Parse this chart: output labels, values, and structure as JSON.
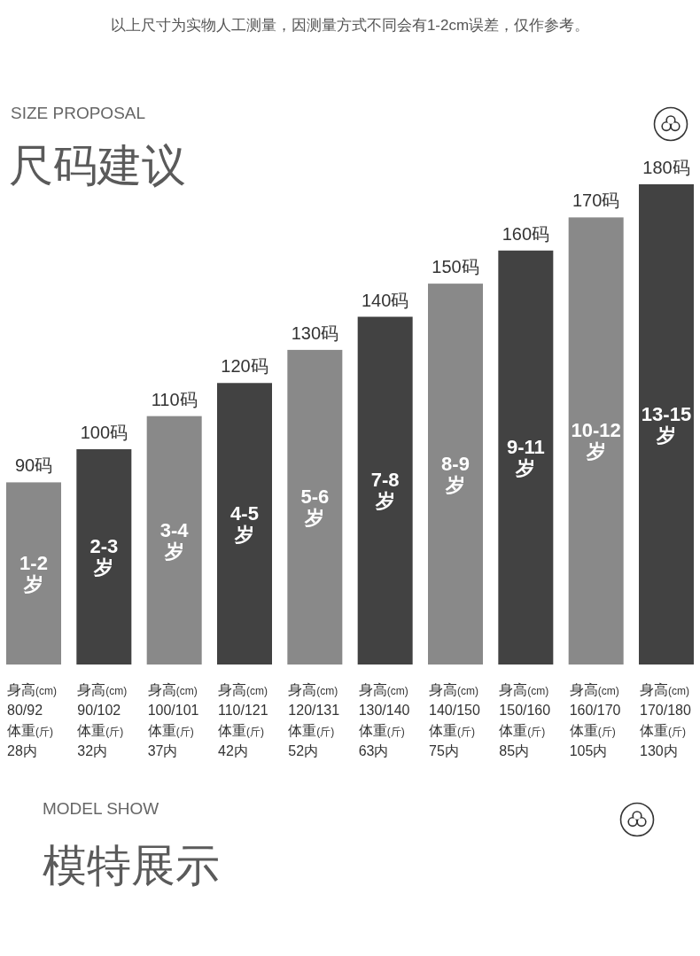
{
  "chart_data": {
    "type": "bar",
    "title": "尺码建议",
    "subtitle": "SIZE PROPOSAL",
    "categories": [
      "身高(cm)\n80/92\n体重(斤)\n28内",
      "身高(cm)\n90/102\n体重(斤)\n32内",
      "身高(cm)\n100/101\n体重(斤)\n37内",
      "身高(cm)\n110/121\n体重(斤)\n42内",
      "身高(cm)\n120/131\n体重(斤)\n52内",
      "身高(cm)\n130/140\n体重(斤)\n63内",
      "身高(cm)\n140/150\n体重(斤)\n75内",
      "身高(cm)\n150/160\n体重(斤)\n85内",
      "身高(cm)\n160/170\n体重(斤)\n105内",
      "身高(cm)\n170/180\n体重(斤)\n130内"
    ],
    "values": [
      90,
      100,
      110,
      120,
      130,
      140,
      150,
      160,
      170,
      180
    ],
    "colors": [
      "#898989",
      "#424242",
      "#898989",
      "#424242",
      "#898989",
      "#424242",
      "#898989",
      "#424242",
      "#898989",
      "#424242"
    ],
    "value_labels": [
      "90码",
      "100码",
      "110码",
      "120码",
      "130码",
      "140码",
      "150码",
      "160码",
      "170码",
      "180码"
    ],
    "ylim": [
      35,
      180
    ],
    "tick_labels": "x",
    "annotations": [
      "以上尺寸为实物人工测量，因测量方式不同会有1-2cm误差，仅作参考。",
      "MODEL SHOW",
      "模特展示",
      "1-2\n岁",
      "2-3\n岁",
      "3-4\n岁",
      "4-5\n岁",
      "5-6\n岁",
      "7-8\n岁",
      "8-9\n岁",
      "9-11\n岁",
      "10-12\n岁",
      "13-15\n岁"
    ]
  }
}
